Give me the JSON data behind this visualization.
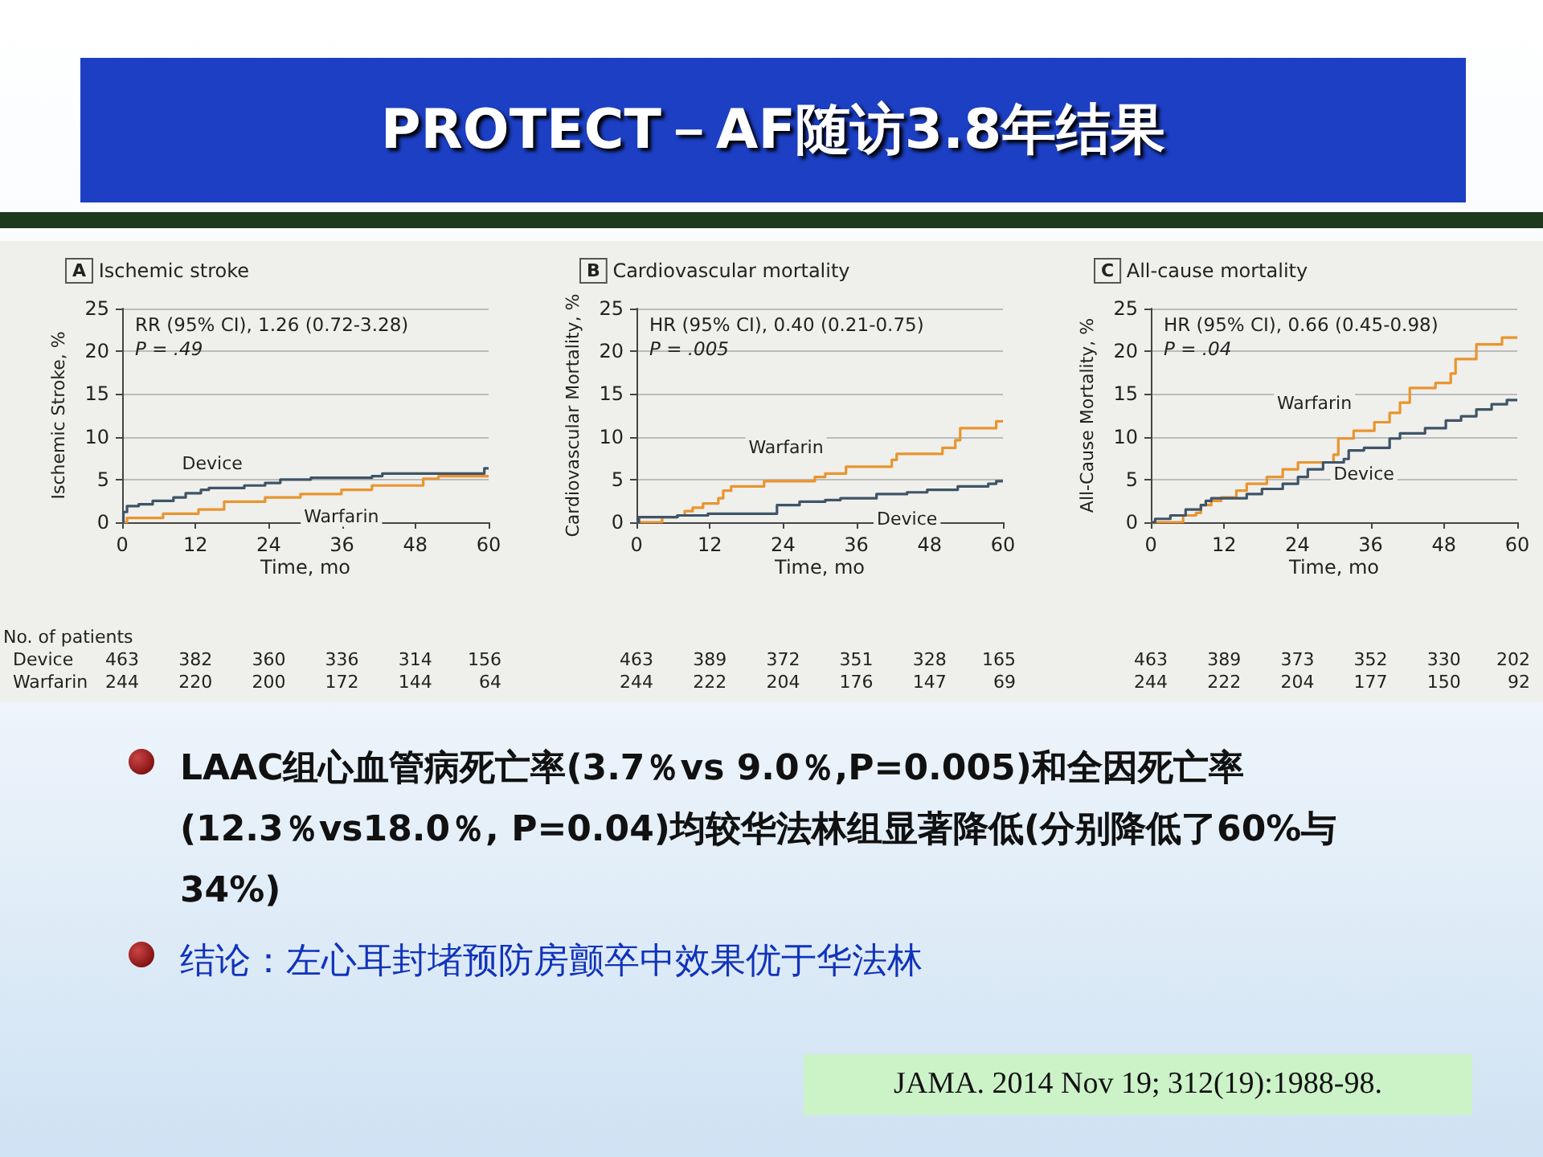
{
  "chart_data": [
    {
      "type": "other",
      "title": "PROTECT－AF随访3.8年结果"
    },
    {
      "type": "step",
      "title": "Ischemic stroke",
      "xlabel": "Time, mo",
      "ylabel": "Ischemic Stroke, %",
      "xlim": [
        0,
        60
      ],
      "xticks": [
        0,
        12,
        24,
        36,
        48,
        60
      ],
      "ylim": [
        0,
        25
      ],
      "yticks": [
        0,
        5,
        10,
        15,
        20,
        25
      ],
      "grid": "y",
      "annotations": [
        "A",
        "RR (95% CI), 1.26 (0.72-3.28)",
        "P = .49",
        "No. of patients",
        "Device 463 382 360 336 314 156",
        "Warfarin 244 220 200 172 144 64"
      ],
      "series": [
        {
          "name": "Device",
          "color": "#3f5466",
          "x": [
            0,
            0.2,
            0.8,
            2.7,
            5,
            8.4,
            10.4,
            12.9,
            14.2,
            20,
            23.4,
            25.9,
            30.9,
            40.9,
            42.6,
            59.3,
            60
          ],
          "values": [
            0,
            1.2,
            1.9,
            2.1,
            2.5,
            2.9,
            3.4,
            3.8,
            4.0,
            4.3,
            4.6,
            5.0,
            5.2,
            5.4,
            5.7,
            6.3,
            6.3
          ]
        },
        {
          "name": "Warfarin",
          "color": "#e8952e",
          "x": [
            0,
            0.8,
            6.7,
            12.5,
            16.7,
            23.4,
            29.2,
            35.9,
            40.9,
            49.3,
            51.8,
            60
          ],
          "values": [
            0,
            0.5,
            1.0,
            1.5,
            2.4,
            2.9,
            3.3,
            3.8,
            4.3,
            5.1,
            5.4,
            5.4
          ]
        }
      ]
    },
    {
      "type": "step",
      "title": "Cardiovascular mortality",
      "xlabel": "Time, mo",
      "ylabel": "Cardiovascular Mortality, %",
      "xlim": [
        0,
        60
      ],
      "xticks": [
        0,
        12,
        24,
        36,
        48,
        60
      ],
      "ylim": [
        0,
        25
      ],
      "yticks": [
        0,
        5,
        10,
        15,
        20,
        25
      ],
      "grid": "y",
      "annotations": [
        "B",
        "HR (95% CI), 0.40 (0.21-0.75)",
        "P = .005",
        "463 389 372 351 328 165",
        "244 222 204 176 147 69"
      ],
      "series": [
        {
          "name": "Device",
          "color": "#3f5466",
          "x": [
            0,
            0.4,
            6.7,
            11.7,
            23.0,
            26.7,
            30.9,
            33.4,
            39.3,
            44.3,
            47.6,
            52.6,
            57.6,
            58.9,
            60
          ],
          "values": [
            0,
            0.6,
            0.8,
            1.0,
            2.0,
            2.4,
            2.6,
            2.8,
            3.3,
            3.5,
            3.8,
            4.2,
            4.5,
            4.8,
            4.8
          ]
        },
        {
          "name": "Warfarin",
          "color": "#e8952e",
          "x": [
            0,
            4.2,
            6.7,
            7.9,
            9.2,
            10.9,
            13.4,
            14.2,
            15.5,
            20.9,
            29.2,
            30.9,
            34.3,
            41.8,
            42.6,
            50.1,
            52.2,
            53.0,
            58.9,
            60
          ],
          "values": [
            0,
            0.6,
            0.8,
            1.3,
            1.7,
            2.2,
            2.8,
            3.7,
            4.2,
            4.8,
            5.3,
            5.7,
            6.5,
            7.3,
            8.0,
            8.7,
            9.6,
            11.0,
            11.8,
            11.8
          ]
        }
      ]
    },
    {
      "type": "step",
      "title": "All-cause mortality",
      "xlabel": "Time, mo",
      "ylabel": "All-Cause Mortality, %",
      "xlim": [
        0,
        60
      ],
      "xticks": [
        0,
        12,
        24,
        36,
        48,
        60
      ],
      "ylim": [
        0,
        25
      ],
      "yticks": [
        0,
        5,
        10,
        15,
        20,
        25
      ],
      "grid": "y",
      "annotations": [
        "C",
        "HR (95% CI), 0.66 (0.45-0.98)",
        "P = .04",
        "463 389 373 352 330 202",
        "244 222 204 177 150 92"
      ],
      "series": [
        {
          "name": "Device",
          "color": "#3f5466",
          "x": [
            0,
            0.7,
            3.2,
            5.7,
            8.2,
            9.0,
            9.9,
            15.7,
            18.2,
            21.6,
            24.1,
            25.7,
            28.2,
            31.6,
            32.4,
            34.9,
            39.1,
            40.8,
            44.9,
            48.3,
            50.8,
            53.3,
            55.8,
            58.3,
            60
          ],
          "values": [
            0,
            0.4,
            0.8,
            1.5,
            2.0,
            2.5,
            2.8,
            3.3,
            3.9,
            4.5,
            5.3,
            6.2,
            7.0,
            7.4,
            8.4,
            8.7,
            9.8,
            10.4,
            11.0,
            11.9,
            12.4,
            13.2,
            13.8,
            14.3,
            14.3
          ]
        },
        {
          "name": "Warfarin",
          "color": "#e8952e",
          "x": [
            0,
            5.3,
            7.4,
            8.2,
            9.9,
            11.5,
            14.0,
            15.7,
            19.0,
            21.6,
            24.1,
            29.9,
            30.7,
            33.2,
            36.6,
            39.1,
            40.8,
            42.4,
            46.6,
            49.1,
            49.9,
            53.3,
            57.5,
            60
          ],
          "values": [
            0,
            0.8,
            1.1,
            2.0,
            2.5,
            2.9,
            3.7,
            4.5,
            5.3,
            6.2,
            7.0,
            7.9,
            9.8,
            10.7,
            11.7,
            12.8,
            14.0,
            15.7,
            16.3,
            17.4,
            19.1,
            20.8,
            21.6,
            21.6
          ]
        }
      ]
    },
    {
      "type": "other",
      "annotations": [
        "LAAC组心血管病死亡率(3.7％vs 9.0％,P=0.005)和全因死亡率(12.3％vs18.0％, P=0.04)均较华法林组显著降低(分别降低了60%与34%)",
        "结论：左心耳封堵预防房颤卒中效果优于华法林",
        "JAMA. 2014 Nov 19; 312(19):1988-98."
      ]
    }
  ]
}
